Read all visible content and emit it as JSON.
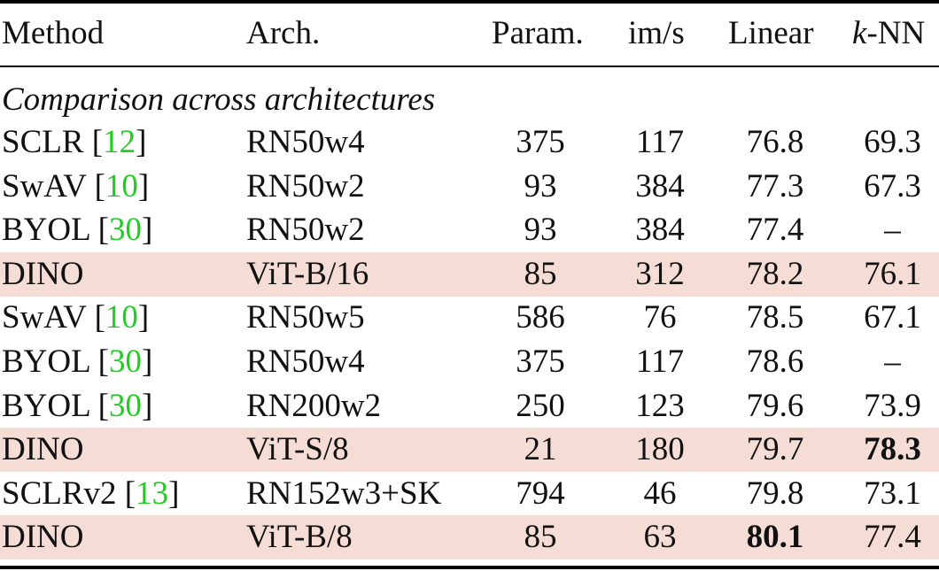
{
  "header": {
    "method": "Method",
    "arch": "Arch.",
    "param": "Param.",
    "ims": "im/s",
    "linear": "Linear",
    "knn_k": "k",
    "knn_rest": "-NN"
  },
  "section_title": "Comparison across architectures",
  "rows": [
    {
      "method": "SCLR",
      "ref": "12",
      "arch": "RN50w4",
      "param": "375",
      "ims": "117",
      "linear": "76.8",
      "knn": "69.3",
      "highlight": false
    },
    {
      "method": "SwAV",
      "ref": "10",
      "arch": "RN50w2",
      "param": "93",
      "ims": "384",
      "linear": "77.3",
      "knn": "67.3",
      "highlight": false
    },
    {
      "method": "BYOL",
      "ref": "30",
      "arch": "RN50w2",
      "param": "93",
      "ims": "384",
      "linear": "77.4",
      "knn": "–",
      "highlight": false
    },
    {
      "method": "DINO",
      "ref": "",
      "arch": "ViT-B/16",
      "param": "85",
      "ims": "312",
      "linear": "78.2",
      "knn": "76.1",
      "highlight": true
    },
    {
      "method": "SwAV",
      "ref": "10",
      "arch": "RN50w5",
      "param": "586",
      "ims": "76",
      "linear": "78.5",
      "knn": "67.1",
      "highlight": false
    },
    {
      "method": "BYOL",
      "ref": "30",
      "arch": "RN50w4",
      "param": "375",
      "ims": "117",
      "linear": "78.6",
      "knn": "–",
      "highlight": false
    },
    {
      "method": "BYOL",
      "ref": "30",
      "arch": "RN200w2",
      "param": "250",
      "ims": "123",
      "linear": "79.6",
      "knn": "73.9",
      "highlight": false
    },
    {
      "method": "DINO",
      "ref": "",
      "arch": "ViT-S/8",
      "param": "21",
      "ims": "180",
      "linear": "79.7",
      "knn": "78.3",
      "highlight": true,
      "bold_knn": true
    },
    {
      "method": "SCLRv2",
      "ref": "13",
      "arch": "RN152w3+SK",
      "param": "794",
      "ims": "46",
      "linear": "79.8",
      "knn": "73.1",
      "highlight": false
    },
    {
      "method": "DINO",
      "ref": "",
      "arch": "ViT-B/8",
      "param": "85",
      "ims": "63",
      "linear": "80.1",
      "knn": "77.4",
      "highlight": true,
      "bold_linear": true
    }
  ],
  "colors": {
    "highlight": "#f5ddd6",
    "ref": "#22cc22"
  }
}
